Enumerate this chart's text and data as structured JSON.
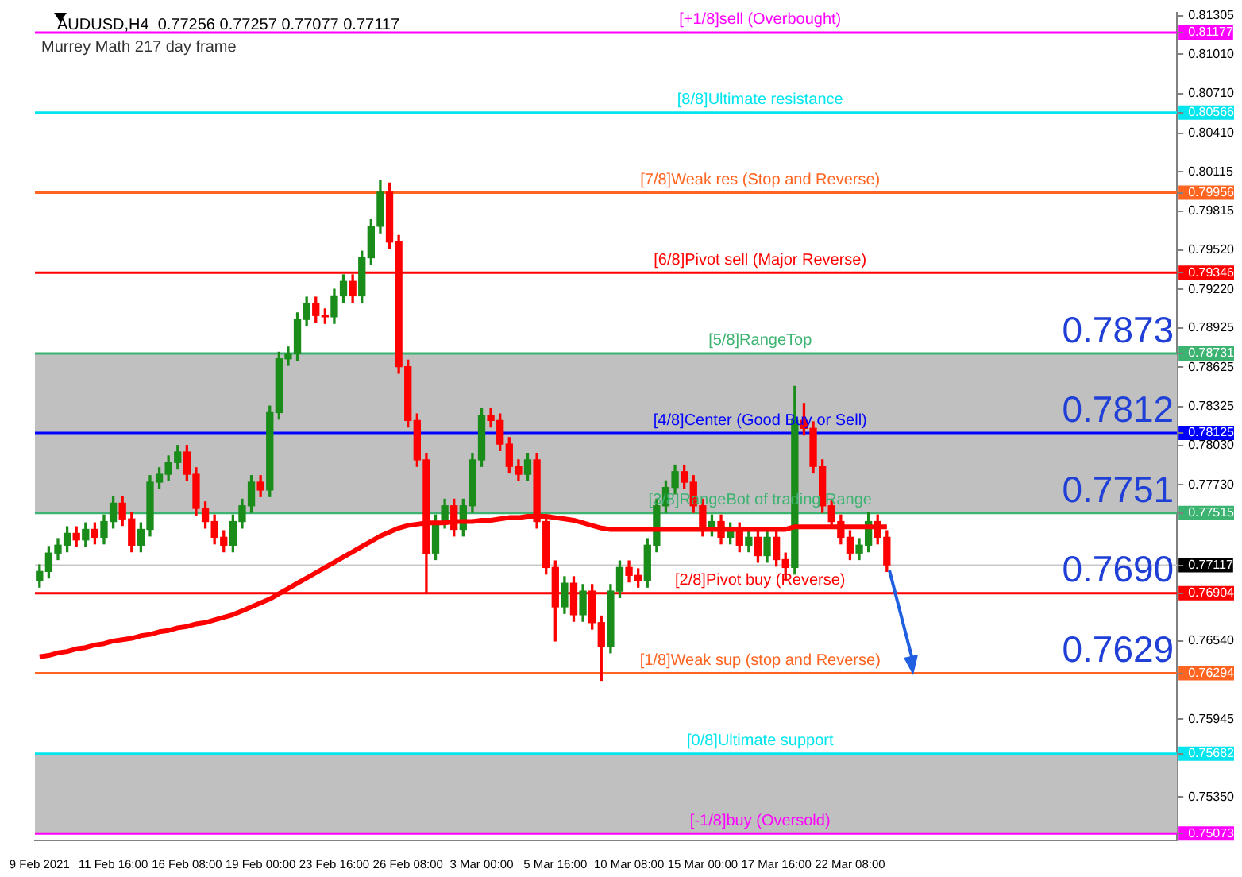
{
  "chart_data": {
    "type": "candlestick",
    "title": "AUDUSD,H4  0.77256 0.77257 0.77077 0.77117",
    "subtitle": "Murrey Math 217 day frame",
    "categories": [
      "9 Feb 2021",
      null,
      null,
      null,
      null,
      null,
      null,
      null,
      "11 Feb 16:00",
      null,
      null,
      null,
      null,
      null,
      null,
      null,
      "16 Feb 08:00",
      null,
      null,
      null,
      null,
      null,
      null,
      null,
      "19 Feb 00:00",
      null,
      null,
      null,
      null,
      null,
      null,
      null,
      "23 Feb 16:00",
      null,
      null,
      null,
      null,
      null,
      null,
      null,
      "26 Feb 08:00",
      null,
      null,
      null,
      null,
      null,
      null,
      null,
      "3 Mar 00:00",
      null,
      null,
      null,
      null,
      null,
      null,
      null,
      "5 Mar 16:00",
      null,
      null,
      null,
      null,
      null,
      null,
      null,
      "10 Mar 08:00",
      null,
      null,
      null,
      null,
      null,
      null,
      null,
      "15 Mar 00:00",
      null,
      null,
      null,
      null,
      null,
      null,
      null,
      "17 Mar 16:00",
      null,
      null,
      null,
      null,
      null,
      null,
      null,
      "22 Mar 08:00",
      null,
      null,
      null,
      null,
      null,
      null,
      null,
      null,
      null,
      null,
      null,
      null,
      null,
      null,
      null,
      null,
      null,
      null,
      null,
      null,
      null,
      null,
      null,
      null,
      null,
      null,
      null,
      null,
      null,
      null,
      null,
      null,
      null,
      null,
      null
    ],
    "ohlc": [
      [
        0.77,
        0.7712,
        0.7695,
        0.7707
      ],
      [
        0.7707,
        0.7726,
        0.7702,
        0.7721
      ],
      [
        0.7721,
        0.7732,
        0.7716,
        0.7727
      ],
      [
        0.7727,
        0.7741,
        0.7722,
        0.7736
      ],
      [
        0.7736,
        0.7741,
        0.7726,
        0.7731
      ],
      [
        0.7731,
        0.7744,
        0.7726,
        0.7739
      ],
      [
        0.7739,
        0.7744,
        0.7728,
        0.7733
      ],
      [
        0.7733,
        0.775,
        0.7728,
        0.7745
      ],
      [
        0.7745,
        0.7764,
        0.774,
        0.7759
      ],
      [
        0.7759,
        0.7764,
        0.7742,
        0.7747
      ],
      [
        0.7747,
        0.7752,
        0.7722,
        0.7727
      ],
      [
        0.7727,
        0.7744,
        0.7722,
        0.7739
      ],
      [
        0.7739,
        0.778,
        0.7734,
        0.7775
      ],
      [
        0.7775,
        0.7786,
        0.777,
        0.7781
      ],
      [
        0.7781,
        0.7795,
        0.7776,
        0.779
      ],
      [
        0.779,
        0.7803,
        0.7785,
        0.7798
      ],
      [
        0.7798,
        0.7803,
        0.7776,
        0.7781
      ],
      [
        0.7781,
        0.7786,
        0.775,
        0.7755
      ],
      [
        0.7755,
        0.776,
        0.774,
        0.7745
      ],
      [
        0.7745,
        0.775,
        0.7728,
        0.7733
      ],
      [
        0.7733,
        0.7738,
        0.7722,
        0.7727
      ],
      [
        0.7727,
        0.775,
        0.7722,
        0.7745
      ],
      [
        0.7745,
        0.7762,
        0.774,
        0.7757
      ],
      [
        0.7757,
        0.778,
        0.7752,
        0.7775
      ],
      [
        0.7775,
        0.778,
        0.7764,
        0.7769
      ],
      [
        0.7769,
        0.7833,
        0.7764,
        0.7828
      ],
      [
        0.7828,
        0.7874,
        0.7823,
        0.7869
      ],
      [
        0.7869,
        0.7878,
        0.7864,
        0.7873
      ],
      [
        0.7873,
        0.7904,
        0.7868,
        0.7899
      ],
      [
        0.7899,
        0.7916,
        0.7894,
        0.7911
      ],
      [
        0.7911,
        0.7916,
        0.7897,
        0.7902
      ],
      [
        0.7902,
        0.7907,
        0.7896,
        0.7901
      ],
      [
        0.7901,
        0.7922,
        0.7896,
        0.7917
      ],
      [
        0.7917,
        0.7933,
        0.7912,
        0.7928
      ],
      [
        0.7928,
        0.7933,
        0.7912,
        0.7917
      ],
      [
        0.7917,
        0.7951,
        0.7912,
        0.7946
      ],
      [
        0.7946,
        0.7975,
        0.7941,
        0.797
      ],
      [
        0.797,
        0.8005,
        0.7965,
        0.7996
      ],
      [
        0.7996,
        0.8003,
        0.7953,
        0.7958
      ],
      [
        0.7958,
        0.7963,
        0.7858,
        0.7863
      ],
      [
        0.7863,
        0.7868,
        0.7817,
        0.7822
      ],
      [
        0.7822,
        0.7827,
        0.7787,
        0.7792
      ],
      [
        0.7792,
        0.7797,
        0.769,
        0.7721
      ],
      [
        0.7721,
        0.775,
        0.7716,
        0.7745
      ],
      [
        0.7745,
        0.7762,
        0.774,
        0.7757
      ],
      [
        0.7757,
        0.7762,
        0.7734,
        0.7739
      ],
      [
        0.7739,
        0.7762,
        0.7734,
        0.7757
      ],
      [
        0.7757,
        0.7797,
        0.7752,
        0.7792
      ],
      [
        0.7792,
        0.7831,
        0.7787,
        0.7826
      ],
      [
        0.7826,
        0.7831,
        0.7817,
        0.7822
      ],
      [
        0.7822,
        0.7827,
        0.7799,
        0.7804
      ],
      [
        0.7804,
        0.7809,
        0.7782,
        0.7787
      ],
      [
        0.7787,
        0.7792,
        0.7776,
        0.7781
      ],
      [
        0.7781,
        0.7797,
        0.7776,
        0.7792
      ],
      [
        0.7792,
        0.7797,
        0.774,
        0.7745
      ],
      [
        0.7745,
        0.775,
        0.7705,
        0.771
      ],
      [
        0.771,
        0.7715,
        0.7654,
        0.768
      ],
      [
        0.768,
        0.7703,
        0.7675,
        0.7698
      ],
      [
        0.7698,
        0.7703,
        0.7669,
        0.7674
      ],
      [
        0.7674,
        0.7697,
        0.7669,
        0.7692
      ],
      [
        0.7692,
        0.7697,
        0.7663,
        0.7668
      ],
      [
        0.7668,
        0.7673,
        0.7624,
        0.765
      ],
      [
        0.765,
        0.7697,
        0.7645,
        0.7692
      ],
      [
        0.7692,
        0.7715,
        0.7687,
        0.771
      ],
      [
        0.771,
        0.7715,
        0.7699,
        0.7704
      ],
      [
        0.7704,
        0.7709,
        0.7695,
        0.77
      ],
      [
        0.77,
        0.7732,
        0.7695,
        0.7727
      ],
      [
        0.7727,
        0.7762,
        0.7722,
        0.7757
      ],
      [
        0.7757,
        0.7776,
        0.7752,
        0.7771
      ],
      [
        0.7771,
        0.7788,
        0.7766,
        0.7783
      ],
      [
        0.7783,
        0.7788,
        0.777,
        0.7775
      ],
      [
        0.7775,
        0.778,
        0.7752,
        0.7757
      ],
      [
        0.7757,
        0.7762,
        0.7734,
        0.7739
      ],
      [
        0.7739,
        0.775,
        0.7734,
        0.7745
      ],
      [
        0.7745,
        0.775,
        0.7728,
        0.7733
      ],
      [
        0.7733,
        0.7744,
        0.7728,
        0.7739
      ],
      [
        0.7739,
        0.7744,
        0.7722,
        0.7727
      ],
      [
        0.7727,
        0.7738,
        0.7722,
        0.7733
      ],
      [
        0.7733,
        0.7738,
        0.7714,
        0.7719
      ],
      [
        0.7719,
        0.7738,
        0.7714,
        0.7733
      ],
      [
        0.7733,
        0.7738,
        0.7711,
        0.7716
      ],
      [
        0.7716,
        0.7721,
        0.77,
        0.771
      ],
      [
        0.771,
        0.7848,
        0.7705,
        0.7822
      ],
      [
        0.7822,
        0.7835,
        0.7811,
        0.7816
      ],
      [
        0.7816,
        0.7821,
        0.7782,
        0.7787
      ],
      [
        0.7787,
        0.7792,
        0.7752,
        0.7757
      ],
      [
        0.7757,
        0.7762,
        0.774,
        0.7745
      ],
      [
        0.7745,
        0.775,
        0.7728,
        0.7733
      ],
      [
        0.7733,
        0.7738,
        0.7716,
        0.7721
      ],
      [
        0.7721,
        0.7732,
        0.7716,
        0.7727
      ],
      [
        0.7727,
        0.7752,
        0.7722,
        0.7745
      ],
      [
        0.7745,
        0.775,
        0.7728,
        0.7733
      ],
      [
        0.7733,
        0.7738,
        0.7707,
        0.7712
      ],
      null,
      null,
      null,
      null,
      null,
      null,
      null,
      null,
      null,
      null,
      null,
      null,
      null,
      null,
      null,
      null,
      null,
      null,
      null,
      null,
      null,
      null,
      null,
      null,
      null,
      null,
      null,
      null,
      null,
      null,
      null
    ],
    "series": [
      {
        "type": "line",
        "color": "#ff0000",
        "values": [
          0.7642,
          0.7643,
          0.7645,
          0.7646,
          0.7648,
          0.7649,
          0.7651,
          0.7652,
          0.7654,
          0.7655,
          0.7656,
          0.7658,
          0.7659,
          0.7661,
          0.7662,
          0.7664,
          0.7665,
          0.7667,
          0.7668,
          0.767,
          0.7672,
          0.7674,
          0.7677,
          0.768,
          0.7683,
          0.7686,
          0.769,
          0.7694,
          0.7698,
          0.7702,
          0.7706,
          0.771,
          0.7714,
          0.7718,
          0.7722,
          0.7726,
          0.773,
          0.7734,
          0.7737,
          0.774,
          0.7742,
          0.7743,
          0.7744,
          0.7744,
          0.7744,
          0.7745,
          0.7745,
          0.7745,
          0.7746,
          0.7746,
          0.7747,
          0.7748,
          0.7748,
          0.7749,
          0.7749,
          0.7749,
          0.7748,
          0.7747,
          0.7746,
          0.7744,
          0.7742,
          0.774,
          0.7739,
          0.7739,
          0.7739,
          0.7739,
          0.7739,
          0.7739,
          0.7739,
          0.7739,
          0.7739,
          0.7739,
          0.7739,
          0.7739,
          0.7739,
          0.7739,
          0.7739,
          0.7739,
          0.7739,
          0.7739,
          0.7739,
          0.7739,
          0.7741,
          0.7741,
          0.7741,
          0.7741,
          0.7741,
          0.7741,
          0.7741,
          0.7741,
          0.7741,
          0.7741,
          0.7741,
          null,
          null,
          null,
          null,
          null,
          null,
          null,
          null,
          null,
          null,
          null,
          null,
          null,
          null,
          null,
          null,
          null,
          null,
          null,
          null,
          null,
          null,
          null,
          null,
          null,
          null,
          null,
          null,
          null,
          null,
          null
        ]
      }
    ],
    "ylim": [
      0.7502,
      0.8133
    ],
    "yticks": [
      0.81305,
      0.81177,
      {
        "value": 0.8101,
        "label": "0.81010"
      },
      {
        "value": 0.8071,
        "label": "0.80710"
      },
      0.80566,
      {
        "value": 0.8041,
        "label": "0.80410"
      },
      0.80115,
      0.79956,
      0.79815,
      {
        "value": 0.7952,
        "label": "0.79520"
      },
      0.79346,
      {
        "value": 0.7922,
        "label": "0.79220"
      },
      0.78925,
      0.78731,
      0.78625,
      0.78325,
      0.78125,
      {
        "value": 0.7803,
        "label": "0.78030"
      },
      {
        "value": 0.7773,
        "label": "0.77730"
      },
      0.77515,
      0.77117,
      0.76904,
      {
        "value": 0.7654,
        "label": "0.76540"
      },
      0.76294,
      0.75945,
      0.75682,
      {
        "value": 0.7535,
        "label": "0.75350"
      },
      0.75073
    ],
    "bands": [
      {
        "axis": "y",
        "from": 0.77515,
        "to": 0.78731,
        "color": "#c0c0c0"
      },
      {
        "axis": "y",
        "from": 0.75073,
        "to": 0.75682,
        "color": "#c0c0c0"
      }
    ],
    "ref_lines": [
      {
        "axis": "y",
        "value": 0.81177,
        "label": "[+1/8]sell (Overbought)",
        "color": "#ff00ff"
      },
      {
        "axis": "y",
        "value": 0.80566,
        "label": "[8/8]Ultimate resistance",
        "color": "#00e5ee"
      },
      {
        "axis": "y",
        "value": 0.79956,
        "label": "[7/8]Weak res (Stop and Reverse)",
        "color": "#ff6420"
      },
      {
        "axis": "y",
        "value": 0.79346,
        "label": "[6/8]Pivot sell (Major Reverse)",
        "color": "#ff0000"
      },
      {
        "axis": "y",
        "value": 0.78731,
        "label": "[5/8]RangeTop",
        "color": "#3cb371"
      },
      {
        "axis": "y",
        "value": 0.78125,
        "label": "[4/8]Center (Good Buy or Sell)",
        "color": "#0000ff"
      },
      {
        "axis": "y",
        "value": 0.77515,
        "label": "[3/8]RangeBot of trading Range",
        "color": "#3cb371"
      },
      {
        "axis": "y",
        "value": 0.77117,
        "color": "#c8c8c8"
      },
      {
        "axis": "y",
        "value": 0.76904,
        "label": "[2/8]Pivot buy (Reverse)",
        "color": "#ff0000"
      },
      {
        "axis": "y",
        "value": 0.76294,
        "label": "[1/8]Weak sup (stop and Reverse)",
        "color": "#ff6420"
      },
      {
        "axis": "y",
        "value": 0.75682,
        "label": "[0/8]Ultimate support",
        "color": "#00e5ee"
      },
      {
        "axis": "y",
        "value": 0.75073,
        "label": "[-1/8]buy (Oversold)",
        "color": "#ff00ff"
      }
    ],
    "annotations": [
      {
        "text": "0.7873",
        "y": 0.78731
      },
      {
        "text": "0.7812",
        "y": 0.78125
      },
      {
        "text": "0.7751",
        "y": 0.77515
      },
      {
        "text": "0.7690",
        "y": 0.76904
      },
      {
        "text": "0.7629",
        "y": 0.76294
      }
    ],
    "legend": false,
    "grid": false,
    "marker": "none",
    "line_style": "solid"
  }
}
